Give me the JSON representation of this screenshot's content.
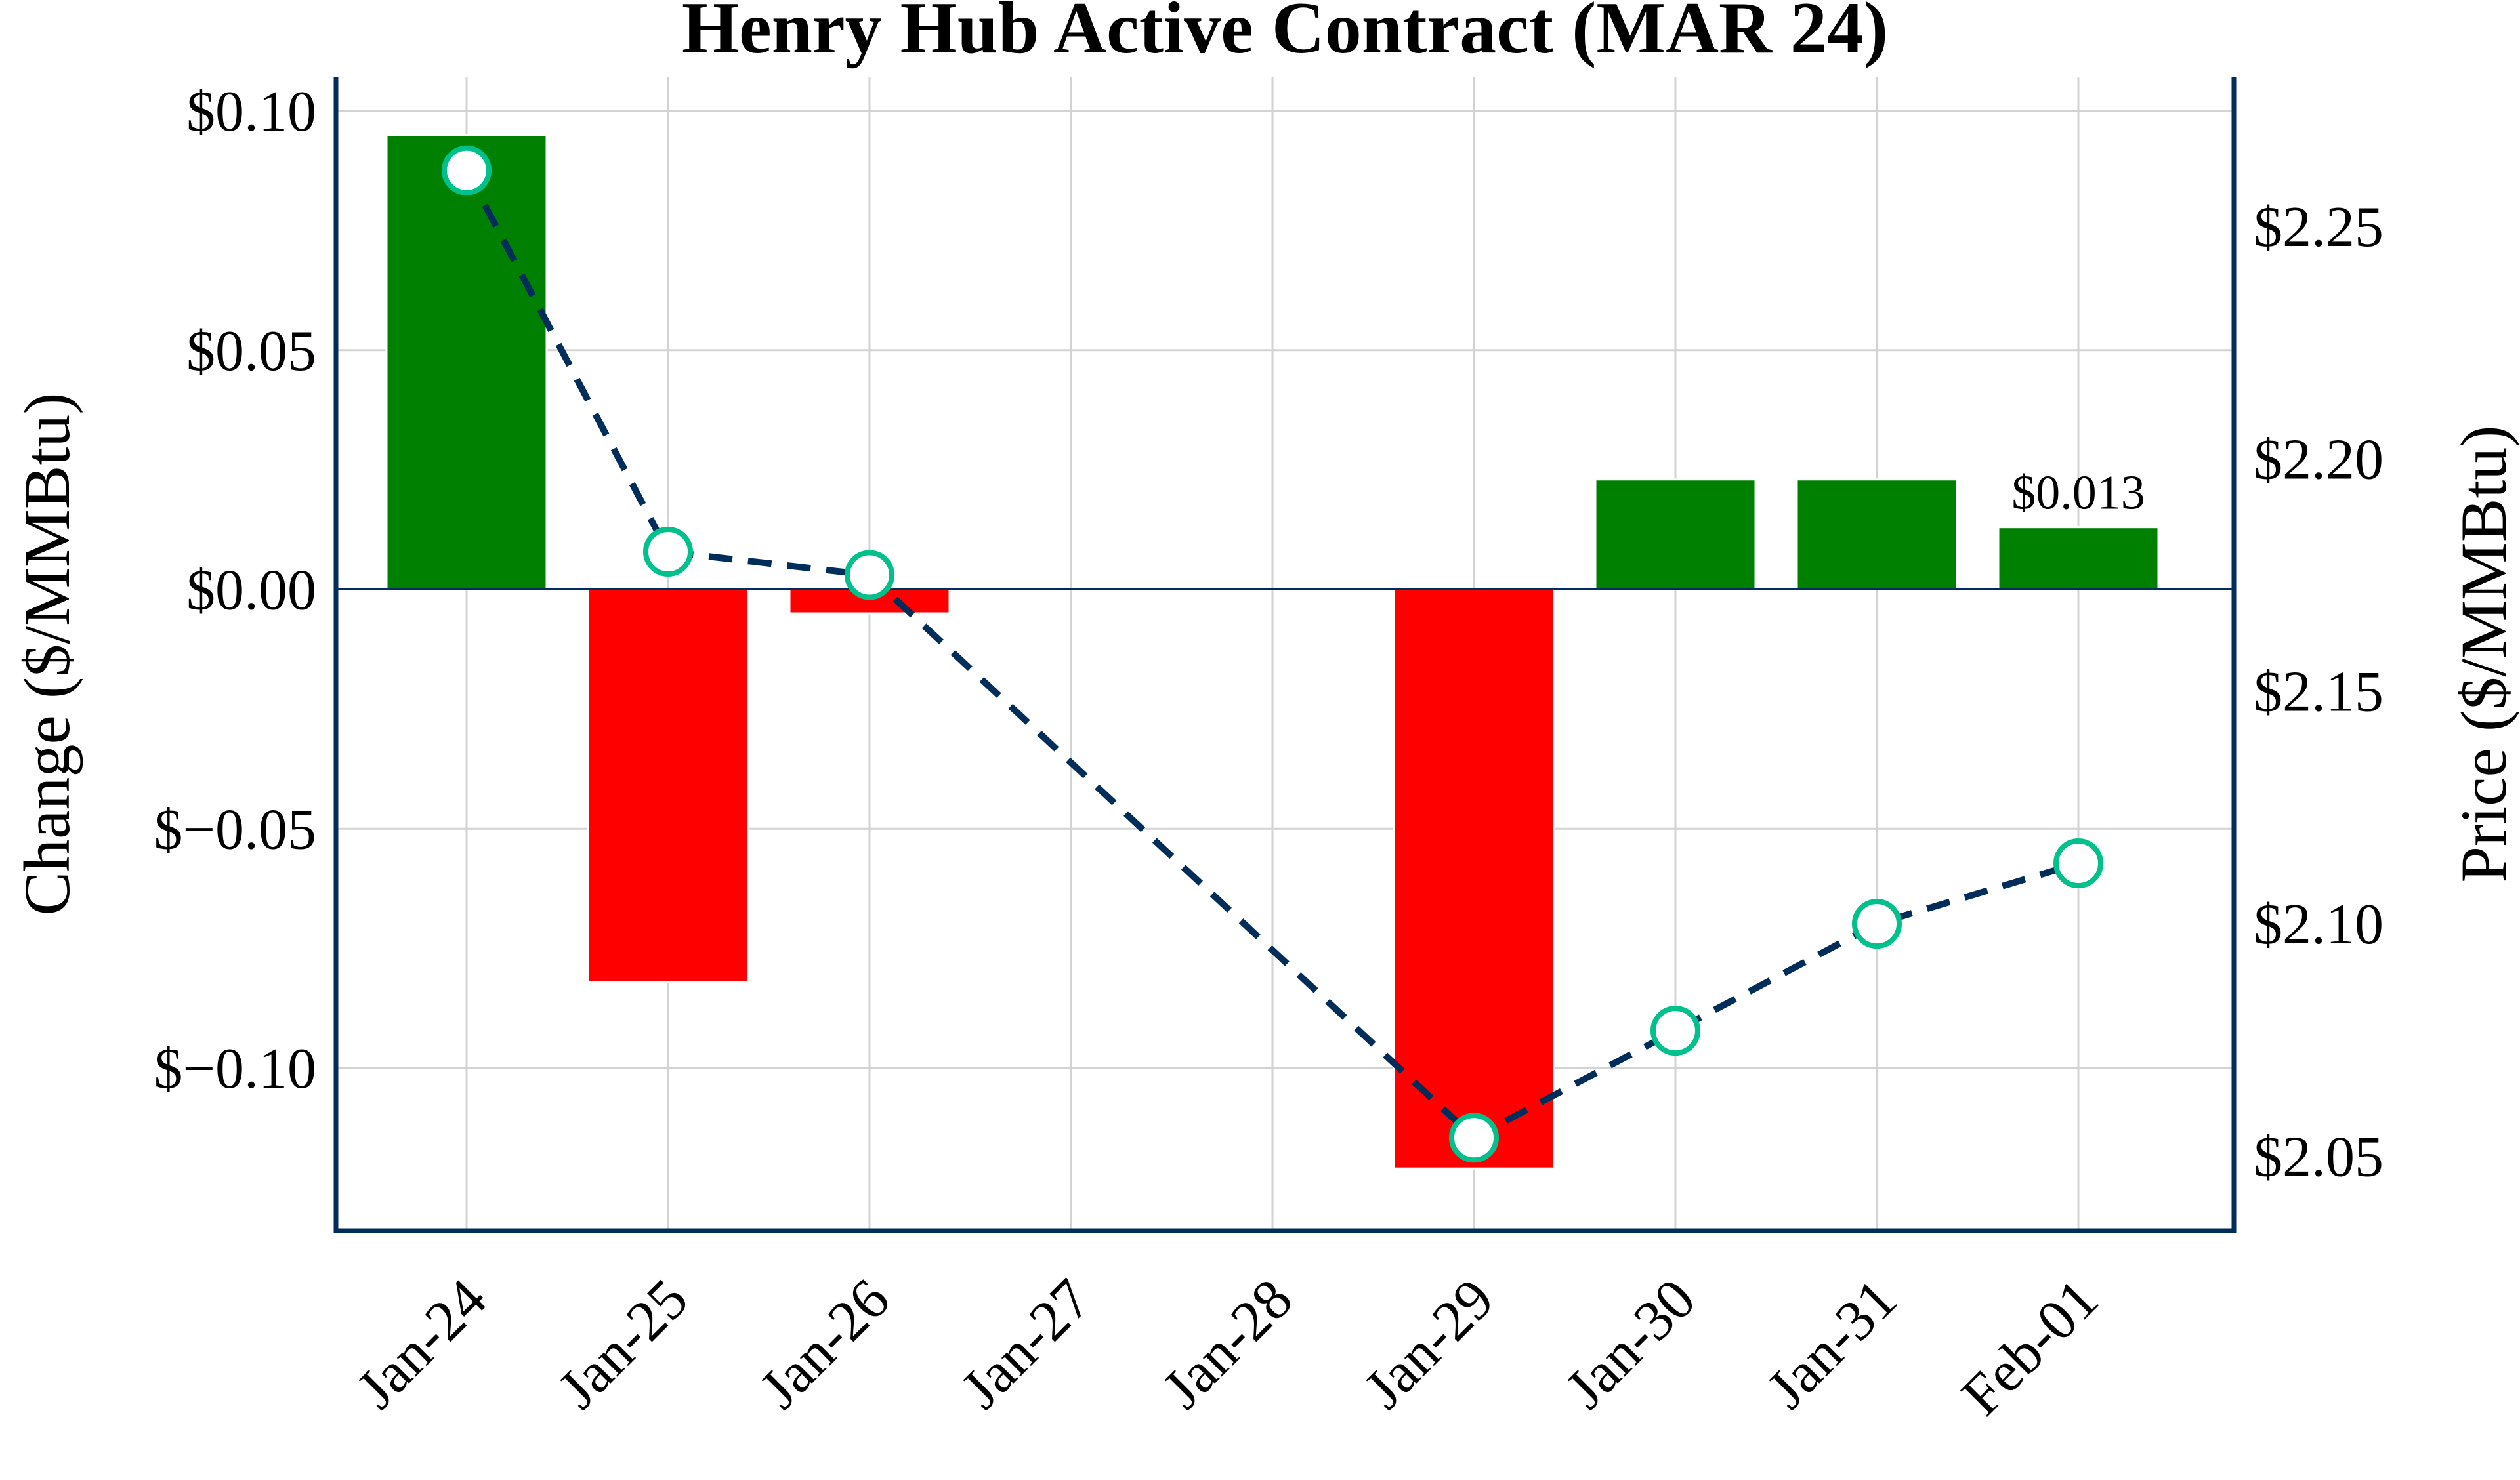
{
  "chart_data": {
    "type": "bar+line",
    "title": "Henry Hub Active Contract (MAR 24)",
    "categories": [
      "Jan-24",
      "Jan-25",
      "Jan-26",
      "Jan-27",
      "Jan-28",
      "Jan-29",
      "Jan-30",
      "Jan-31",
      "Feb-01"
    ],
    "left_axis": {
      "label": "Change ($/MMBtu)",
      "ylim": [
        -0.134,
        0.107
      ],
      "ticks": [
        0.1,
        0.05,
        0.0,
        -0.05,
        -0.1
      ],
      "tick_labels": [
        "$0.10",
        "$0.05",
        "$0.00",
        "$−0.05",
        "$−0.10"
      ]
    },
    "right_axis": {
      "label": "Price ($/MMBtu)",
      "ylim": [
        2.034,
        2.282
      ],
      "ticks": [
        2.25,
        2.2,
        2.15,
        2.1,
        2.05
      ],
      "tick_labels": [
        "$2.25",
        "$2.20",
        "$2.15",
        "$2.10",
        "$2.05"
      ]
    },
    "series": [
      {
        "kind": "bar",
        "axis": "left",
        "values": [
          0.095,
          -0.082,
          -0.005,
          null,
          null,
          -0.121,
          0.023,
          0.023,
          0.013
        ]
      },
      {
        "kind": "line",
        "axis": "right",
        "style": "dashed",
        "values": [
          2.262,
          2.18,
          2.175,
          null,
          null,
          2.054,
          2.077,
          2.1,
          2.113
        ]
      }
    ],
    "annotation": {
      "category": "Feb-01",
      "text": "$0.013"
    },
    "grid": true,
    "colors": {
      "positive": "#008000",
      "negative": "#ff0000",
      "line": "#002d5a",
      "marker_edge": "#00c08b",
      "axis": "#002d5a",
      "grid": "#d3d3d3"
    }
  }
}
